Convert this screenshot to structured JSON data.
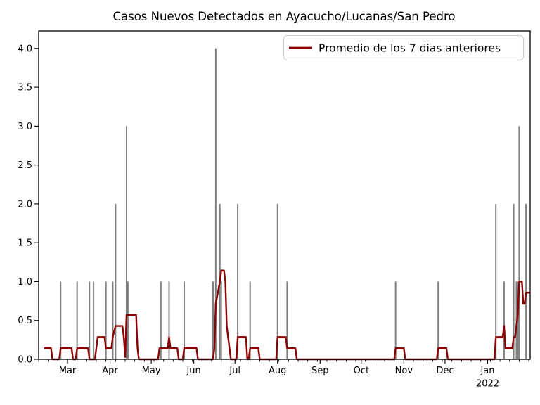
{
  "chart_data": {
    "type": "bar+line",
    "title": "Casos Nuevos Detectados en Ayacucho/Lucanas/San Pedro",
    "legend": {
      "label": "Promedio de los 7 dias anteriores",
      "position": "upper right"
    },
    "x_range": [
      "2021-02-08",
      "2022-02-01"
    ],
    "ylim": [
      0,
      4.2245
    ],
    "grid": false,
    "x_ticks": [
      {
        "date": "2021-03-01",
        "label": "Mar"
      },
      {
        "date": "2021-04-01",
        "label": "Apr"
      },
      {
        "date": "2021-05-01",
        "label": "May"
      },
      {
        "date": "2021-06-01",
        "label": "Jun"
      },
      {
        "date": "2021-07-01",
        "label": "Jul"
      },
      {
        "date": "2021-08-01",
        "label": "Aug"
      },
      {
        "date": "2021-09-01",
        "label": "Sep"
      },
      {
        "date": "2021-10-01",
        "label": "Oct"
      },
      {
        "date": "2021-11-01",
        "label": "Nov"
      },
      {
        "date": "2021-12-01",
        "label": "Dec"
      },
      {
        "date": "2022-01-01",
        "label": "Jan",
        "sub": "2022"
      }
    ],
    "minor_tick_interval_days": 7,
    "y_ticks": [
      {
        "value": 0.0,
        "label": "0.0"
      },
      {
        "value": 0.5,
        "label": "0.5"
      },
      {
        "value": 1.0,
        "label": "1.0"
      },
      {
        "value": 1.5,
        "label": "1.5"
      },
      {
        "value": 2.0,
        "label": "2.0"
      },
      {
        "value": 2.5,
        "label": "2.5"
      },
      {
        "value": 3.0,
        "label": "3.0"
      },
      {
        "value": 3.5,
        "label": "3.5"
      },
      {
        "value": 4.0,
        "label": "4.0"
      }
    ],
    "series": [
      {
        "name": "casos_nuevos_diarios",
        "type": "bar",
        "color": "#7F7F7F",
        "points": [
          [
            "2021-02-24",
            1
          ],
          [
            "2021-03-08",
            1
          ],
          [
            "2021-03-17",
            1
          ],
          [
            "2021-03-20",
            1
          ],
          [
            "2021-03-29",
            1
          ],
          [
            "2021-04-03",
            1
          ],
          [
            "2021-04-05",
            2
          ],
          [
            "2021-04-13",
            3
          ],
          [
            "2021-04-14",
            1
          ],
          [
            "2021-05-08",
            1
          ],
          [
            "2021-05-14",
            1
          ],
          [
            "2021-05-25",
            1
          ],
          [
            "2021-06-15",
            1
          ],
          [
            "2021-06-17",
            4
          ],
          [
            "2021-06-20",
            2
          ],
          [
            "2021-06-21",
            1
          ],
          [
            "2021-07-03",
            2
          ],
          [
            "2021-07-12",
            1
          ],
          [
            "2021-08-01",
            2
          ],
          [
            "2021-08-08",
            1
          ],
          [
            "2021-10-26",
            1
          ],
          [
            "2021-11-26",
            1
          ],
          [
            "2022-01-07",
            2
          ],
          [
            "2022-01-13",
            1
          ],
          [
            "2022-01-20",
            2
          ],
          [
            "2022-01-22",
            1
          ],
          [
            "2022-01-23",
            1
          ],
          [
            "2022-01-24",
            3
          ],
          [
            "2022-01-29",
            2
          ]
        ]
      },
      {
        "name": "promedio_7_dias",
        "type": "line",
        "color": "#8B0000",
        "label": "Promedio de los 7 dias anteriores",
        "points": [
          [
            "2021-02-12",
            0.143
          ],
          [
            "2021-02-17",
            0.143
          ],
          [
            "2021-02-18",
            0
          ],
          [
            "2021-02-23",
            0
          ],
          [
            "2021-02-24",
            0.143
          ],
          [
            "2021-03-04",
            0.143
          ],
          [
            "2021-03-05",
            0
          ],
          [
            "2021-03-07",
            0
          ],
          [
            "2021-03-08",
            0.143
          ],
          [
            "2021-03-16",
            0.143
          ],
          [
            "2021-03-17",
            0
          ],
          [
            "2021-03-21",
            0
          ],
          [
            "2021-03-23",
            0.286
          ],
          [
            "2021-03-28",
            0.286
          ],
          [
            "2021-03-29",
            0.143
          ],
          [
            "2021-04-02",
            0.143
          ],
          [
            "2021-04-03",
            0.286
          ],
          [
            "2021-04-05",
            0.429
          ],
          [
            "2021-04-10",
            0.429
          ],
          [
            "2021-04-11",
            0.286
          ],
          [
            "2021-04-12",
            0.03
          ],
          [
            "2021-04-13",
            0.571
          ],
          [
            "2021-04-20",
            0.571
          ],
          [
            "2021-04-21",
            0.143
          ],
          [
            "2021-04-22",
            0
          ],
          [
            "2021-05-06",
            0
          ],
          [
            "2021-05-07",
            0.143
          ],
          [
            "2021-05-13",
            0.143
          ],
          [
            "2021-05-14",
            0.286
          ],
          [
            "2021-05-15",
            0.143
          ],
          [
            "2021-05-20",
            0.143
          ],
          [
            "2021-05-21",
            0
          ],
          [
            "2021-05-24",
            0
          ],
          [
            "2021-05-25",
            0.143
          ],
          [
            "2021-06-03",
            0.143
          ],
          [
            "2021-06-04",
            0
          ],
          [
            "2021-06-15",
            0
          ],
          [
            "2021-06-16",
            0.143
          ],
          [
            "2021-06-17",
            0.714
          ],
          [
            "2021-06-20",
            1.0
          ],
          [
            "2021-06-21",
            1.143
          ],
          [
            "2021-06-23",
            1.143
          ],
          [
            "2021-06-24",
            1.0
          ],
          [
            "2021-06-25",
            0.429
          ],
          [
            "2021-06-27",
            0.143
          ],
          [
            "2021-06-28",
            0
          ],
          [
            "2021-07-02",
            0
          ],
          [
            "2021-07-03",
            0.286
          ],
          [
            "2021-07-09",
            0.286
          ],
          [
            "2021-07-10",
            0
          ],
          [
            "2021-07-11",
            0
          ],
          [
            "2021-07-12",
            0.143
          ],
          [
            "2021-07-18",
            0.143
          ],
          [
            "2021-07-19",
            0
          ],
          [
            "2021-07-31",
            0
          ],
          [
            "2021-08-01",
            0.286
          ],
          [
            "2021-08-07",
            0.286
          ],
          [
            "2021-08-08",
            0.143
          ],
          [
            "2021-08-14",
            0.143
          ],
          [
            "2021-08-15",
            0
          ],
          [
            "2021-10-25",
            0
          ],
          [
            "2021-10-26",
            0.143
          ],
          [
            "2021-11-01",
            0.143
          ],
          [
            "2021-11-02",
            0
          ],
          [
            "2021-11-25",
            0
          ],
          [
            "2021-11-26",
            0.143
          ],
          [
            "2021-12-02",
            0.143
          ],
          [
            "2021-12-03",
            0
          ],
          [
            "2022-01-06",
            0
          ],
          [
            "2022-01-07",
            0.286
          ],
          [
            "2022-01-12",
            0.286
          ],
          [
            "2022-01-13",
            0.429
          ],
          [
            "2022-01-14",
            0.143
          ],
          [
            "2022-01-19",
            0.143
          ],
          [
            "2022-01-20",
            0.286
          ],
          [
            "2022-01-21",
            0.286
          ],
          [
            "2022-01-22",
            0.429
          ],
          [
            "2022-01-23",
            0.571
          ],
          [
            "2022-01-24",
            1.0
          ],
          [
            "2022-01-26",
            1.0
          ],
          [
            "2022-01-27",
            0.714
          ],
          [
            "2022-01-28",
            0.714
          ],
          [
            "2022-01-29",
            0.857
          ],
          [
            "2022-02-01",
            0.857
          ]
        ]
      }
    ],
    "colors": {
      "line": "#8B0000",
      "bars": "#7F7F7F",
      "axis": "#000000",
      "legend_border": "#CCCCCC",
      "background": "#FFFFFF"
    }
  }
}
